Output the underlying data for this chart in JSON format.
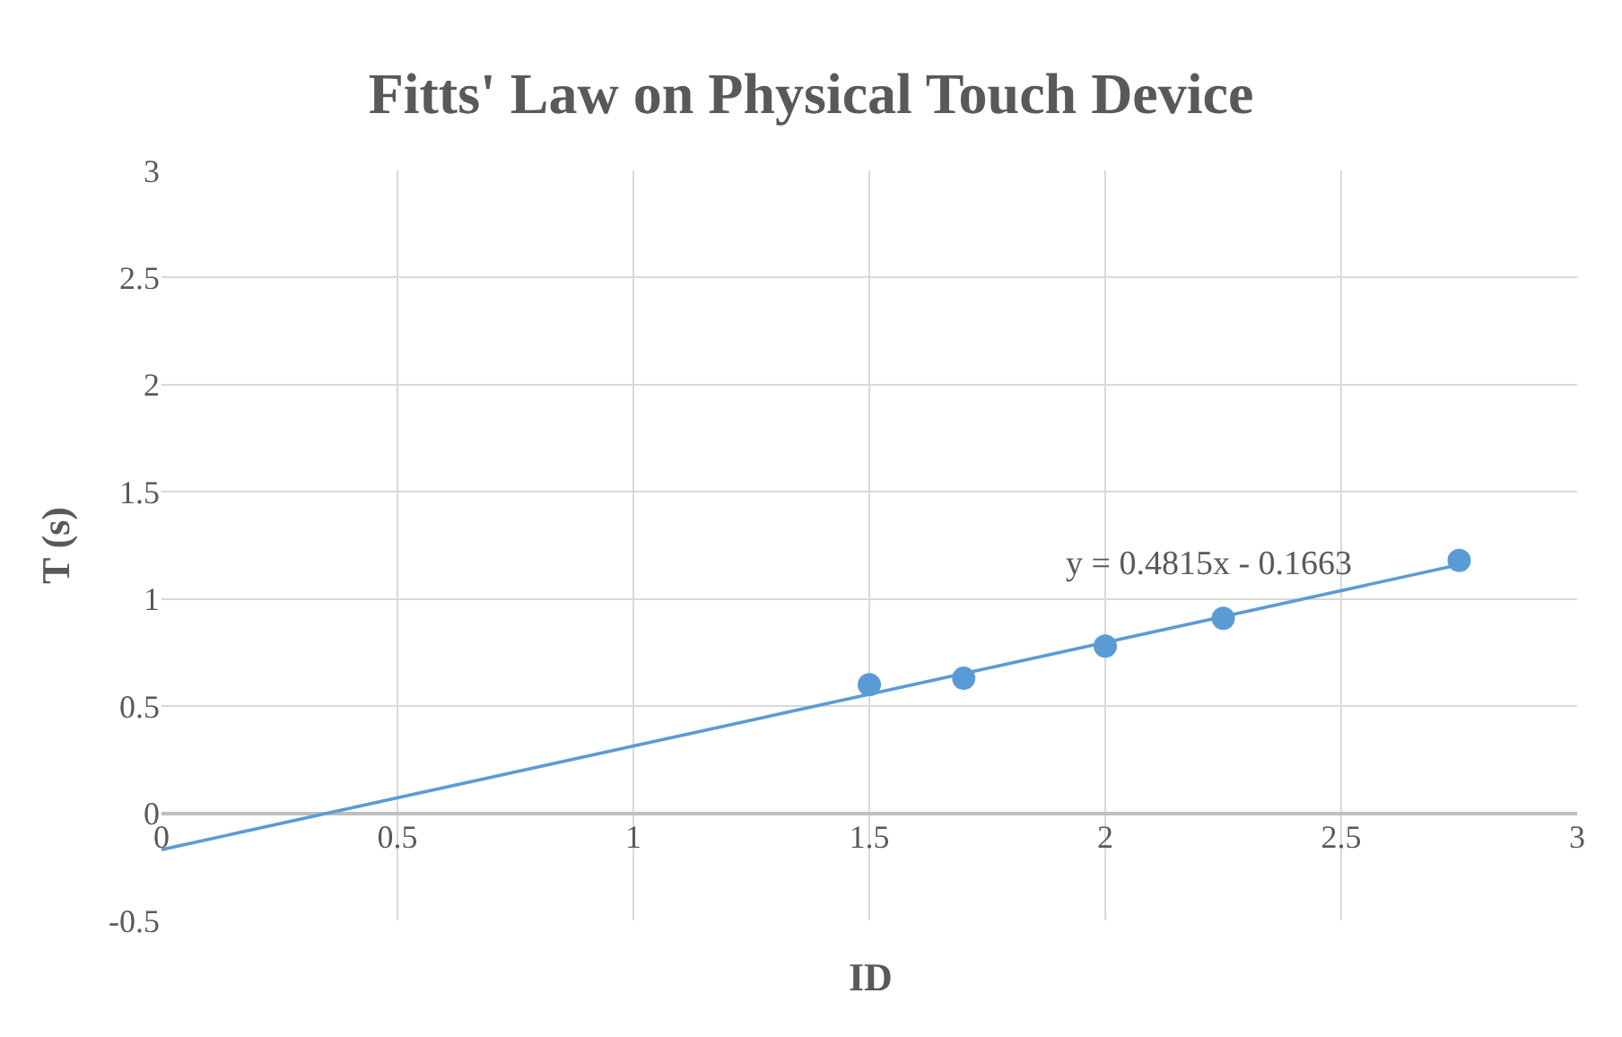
{
  "chart_data": {
    "type": "scatter",
    "title": "Fitts' Law on Physical Touch Device",
    "xlabel": "ID",
    "ylabel": "T (s)",
    "x": [
      1.5,
      1.7,
      2.0,
      2.25,
      2.75
    ],
    "series": [
      {
        "color": "#5b9bd5",
        "values": [
          0.6,
          0.63,
          0.78,
          0.91,
          1.18
        ],
        "marker": "circle"
      },
      {
        "type": "line",
        "color": "#5b9bd5",
        "x": [
          0,
          2.75
        ],
        "values": [
          -0.17,
          1.16
        ],
        "marker": "none",
        "line_style": "solid"
      }
    ],
    "annotations": [
      "y = 0.4815x - 0.1663"
    ],
    "xlim": [
      0,
      3
    ],
    "xticks": [
      0,
      0.5,
      1,
      1.5,
      2,
      2.5,
      3
    ],
    "ylim": [
      -0.5,
      3
    ],
    "yticks": [
      -0.5,
      0,
      0.5,
      1,
      1.5,
      2,
      2.5,
      3
    ],
    "grid": true,
    "legend": false
  }
}
